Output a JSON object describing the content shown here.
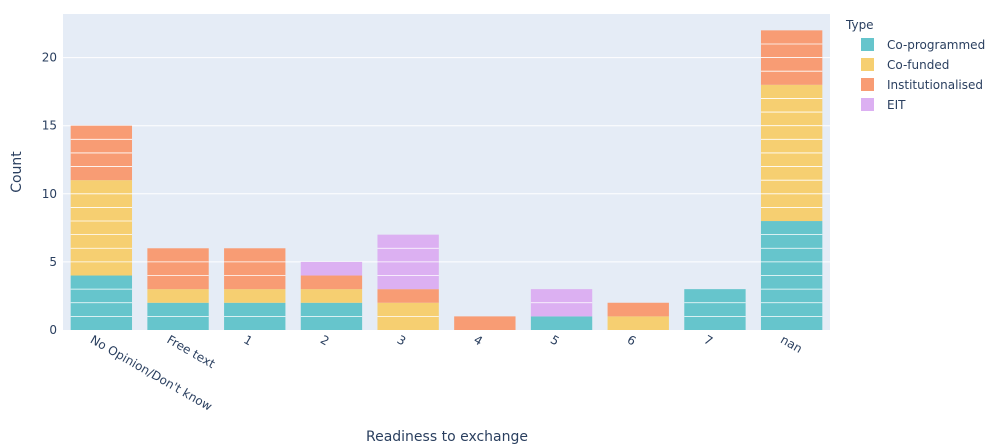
{
  "chart_data": {
    "type": "bar",
    "stacked": true,
    "categories": [
      "No Opinion/Don't know",
      "Free text",
      "1",
      "2",
      "3",
      "4",
      "5",
      "6",
      "7",
      "nan"
    ],
    "series": [
      {
        "name": "Co-programmed",
        "color": "#66c5cc",
        "values": [
          4,
          2,
          2,
          2,
          0,
          0,
          1,
          0,
          3,
          8
        ]
      },
      {
        "name": "Co-funded",
        "color": "#f6cf71",
        "values": [
          7,
          1,
          1,
          1,
          2,
          0,
          0,
          1,
          0,
          10
        ]
      },
      {
        "name": "Institutionalised",
        "color": "#f89c74",
        "values": [
          4,
          3,
          3,
          1,
          1,
          1,
          0,
          1,
          0,
          4
        ]
      },
      {
        "name": "EIT",
        "color": "#dcb0f2",
        "values": [
          0,
          0,
          0,
          1,
          4,
          0,
          2,
          0,
          0,
          0
        ]
      }
    ],
    "xlabel": "Readiness to exchange",
    "ylabel": "Count",
    "ylim": [
      0,
      23.2
    ],
    "yticks": [
      0,
      5,
      10,
      15,
      20
    ],
    "legend_title": "Type",
    "legend_position": "top-right",
    "grid": true,
    "plot_background": "#e5ecf6",
    "bar_segment_lines": "white"
  }
}
